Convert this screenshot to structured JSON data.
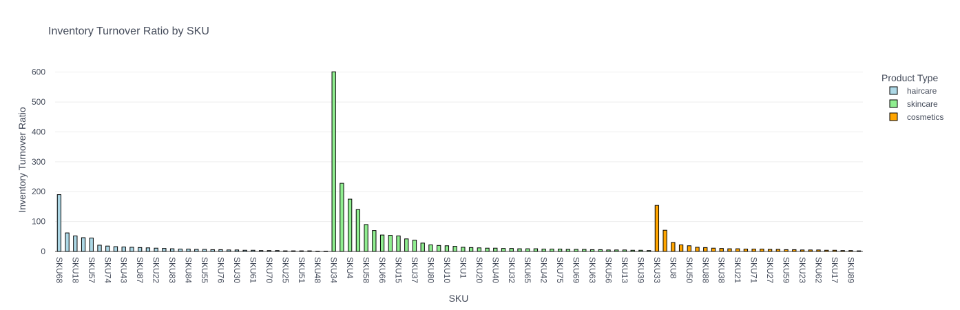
{
  "chart_data": {
    "type": "bar",
    "title": "Inventory Turnover Ratio by SKU",
    "xlabel": "SKU",
    "ylabel": "Inventory Turnover Ratio",
    "ylim": [
      0,
      620
    ],
    "yticks": [
      0,
      100,
      200,
      300,
      400,
      500,
      600
    ],
    "grid": true,
    "legend_title": "Product Type",
    "legend_position": "right",
    "x_tick_labels": [
      "SKU68",
      "SKU18",
      "SKU57",
      "SKU74",
      "SKU43",
      "SKU87",
      "SKU22",
      "SKU83",
      "SKU84",
      "SKU55",
      "SKU76",
      "SKU30",
      "SKU61",
      "SKU70",
      "SKU25",
      "SKU51",
      "SKU48",
      "SKU34",
      "SKU4",
      "SKU58",
      "SKU66",
      "SKU15",
      "SKU37",
      "SKU80",
      "SKU10",
      "SKU1",
      "SKU20",
      "SKU40",
      "SKU32",
      "SKU65",
      "SKU42",
      "SKU75",
      "SKU69",
      "SKU63",
      "SKU56",
      "SKU13",
      "SKU39",
      "SKU33",
      "SKU8",
      "SKU50",
      "SKU88",
      "SKU38",
      "SKU21",
      "SKU71",
      "SKU27",
      "SKU59",
      "SKU23",
      "SKU62",
      "SKU17",
      "SKU89"
    ],
    "series": [
      {
        "name": "haircare",
        "color": "#add8e6",
        "values": [
          190,
          62,
          52,
          46,
          45,
          21,
          18,
          16,
          15,
          14,
          13,
          12,
          11,
          10,
          9,
          8,
          8,
          7,
          7,
          6,
          6,
          5,
          5,
          4,
          4,
          3,
          3,
          3,
          2,
          2,
          2,
          2,
          1,
          1
        ]
      },
      {
        "name": "skincare",
        "color": "#90ee90",
        "values": [
          601,
          228,
          175,
          140,
          90,
          70,
          55,
          54,
          52,
          42,
          38,
          28,
          22,
          20,
          19,
          17,
          14,
          13,
          12,
          11,
          11,
          10,
          10,
          9,
          9,
          9,
          8,
          8,
          8,
          7,
          7,
          7,
          6,
          6,
          5,
          5,
          5,
          4,
          4,
          3
        ]
      },
      {
        "name": "cosmetics",
        "color": "#ffa500",
        "values": [
          154,
          71,
          30,
          22,
          19,
          14,
          13,
          11,
          10,
          9,
          9,
          8,
          8,
          8,
          7,
          7,
          6,
          6,
          5,
          5,
          5,
          4,
          4,
          3,
          3,
          2
        ]
      }
    ]
  }
}
